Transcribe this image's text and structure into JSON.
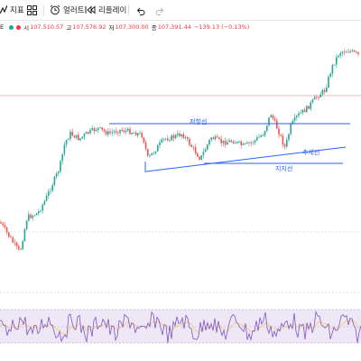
{
  "toolbar": {
    "indicators_label": "지표",
    "alert_label": "얼러트",
    "replay_label": "리플레이"
  },
  "legend": {
    "symbol_suffix": "E",
    "open_key": "시",
    "open_val": "107,510.57",
    "high_key": "고",
    "high_val": "107,576.92",
    "low_key": "저",
    "low_val": "107,300.00",
    "close_key": "종",
    "close_val": "107,391.44",
    "change": "−139.13 (−0.13%)"
  },
  "annotations": {
    "resistance": "저항선",
    "trendline": "추세선",
    "support": "지지선"
  },
  "colors": {
    "up": "#26a69a",
    "down": "#ef5350",
    "drawing": "#2962ff",
    "rsi_line": "#7e57c2",
    "rsi_ma": "#f7c85f",
    "rsi_band": "#ede7f6"
  }
}
